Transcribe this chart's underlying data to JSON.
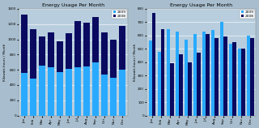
{
  "title": "Energy Usage Per Month",
  "ylabel": "Kilowatt-hours / Month",
  "months": [
    "Jan",
    "Feb",
    "Mar",
    "Apr",
    "May",
    "Jun",
    "Jul",
    "Aug",
    "Sep",
    "Oct",
    "Nov",
    "Dec"
  ],
  "data_2009": [
    560,
    480,
    650,
    630,
    570,
    610,
    630,
    640,
    700,
    540,
    500,
    600
  ],
  "data_2008": [
    770,
    650,
    390,
    460,
    400,
    470,
    610,
    580,
    590,
    550,
    500,
    580
  ],
  "color_2009": "#29aaff",
  "color_2008": "#0a0a60",
  "bg_color": "#a8bece",
  "plot_bg": "#b8cede",
  "grid_color": "#c8dae8",
  "ylim_left": [
    0,
    1400
  ],
  "ylim_right": [
    0,
    800
  ],
  "yticks_left": [
    0,
    200,
    400,
    600,
    800,
    1000,
    1200,
    1400
  ],
  "yticks_right": [
    0,
    100,
    200,
    300,
    400,
    500,
    600,
    700,
    800
  ],
  "legend_labels": [
    "2009",
    "2008"
  ]
}
